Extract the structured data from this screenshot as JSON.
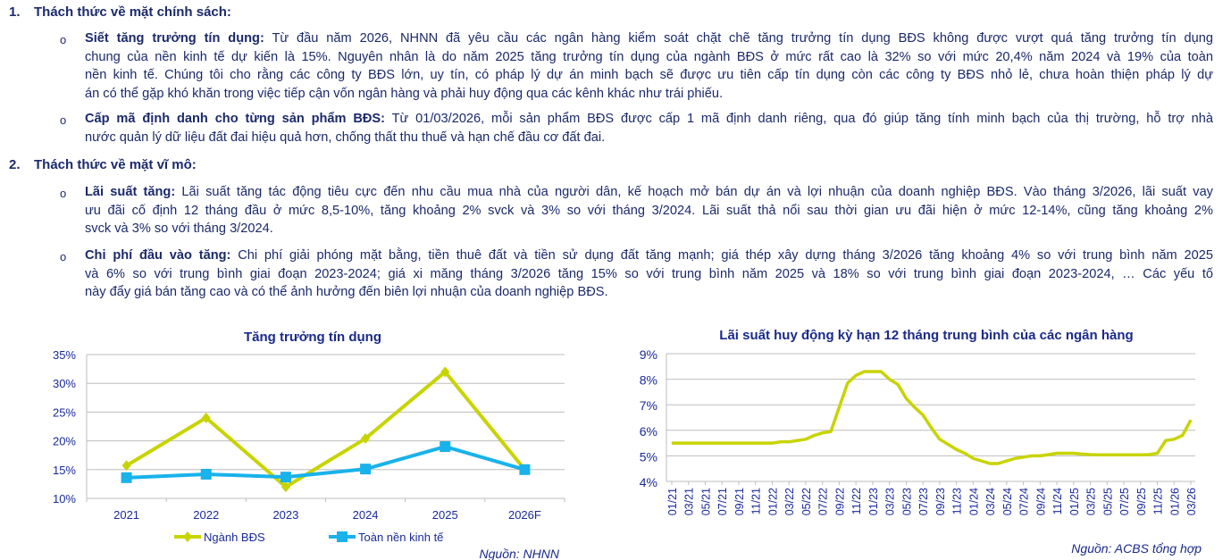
{
  "sections": [
    {
      "number": "1.",
      "title": "Thách thức về mặt chính sách:",
      "items": [
        {
          "label": "Siết tăng trưởng tín dụng:",
          "lines": [
            " Từ đầu năm 2026, NHNN đã yêu cầu các ngân hàng kiểm soát chặt chẽ tăng trưởng tín dụng BĐS không được vượt quá tăng trưởng tín dụng",
            "chung của nền kinh tế dự kiến là 15%. Nguyên nhân là do năm 2025 tăng trưởng tín dụng của ngành BĐS ở mức rất cao là 32% so với mức 20,4% năm 2024 và 19% của toàn",
            "nền kinh tế. Chúng tôi cho rằng các công ty BĐS lớn, uy tín, có pháp lý dự án minh bạch sẽ được ưu tiên cấp tín dụng còn các công ty BĐS nhỏ lẻ, chưa hoàn thiện pháp lý dự",
            "án có thể gặp khó khăn trong việc tiếp cận vốn ngân hàng và phải huy động qua các kênh khác như trái phiếu."
          ]
        },
        {
          "label": "Cấp mã định danh cho từng sản phẩm BĐS:",
          "lines": [
            " Từ 01/03/2026, mỗi sản phẩm BĐS được cấp 1 mã định danh riêng, qua đó giúp tăng tính minh bạch của thị trường, hỗ trợ nhà",
            "nước quản lý dữ liệu đất đai hiệu quả hơn, chống thất thu thuế và hạn chế đầu cơ đất đai."
          ]
        }
      ]
    },
    {
      "number": "2.",
      "title": "Thách thức về mặt vĩ mô:",
      "items": [
        {
          "label": "Lãi suất tăng:",
          "lines": [
            " Lãi suất tăng tác động tiêu cực đến nhu cầu mua nhà của người dân, kế hoạch mở bán dự án và lợi nhuận của doanh nghiệp BĐS. Vào tháng 3/2026, lãi suất vay",
            "ưu đãi cố định 12 tháng đầu ở mức 8,5-10%, tăng khoảng 2% svck và 3% so với tháng 3/2024. Lãi suất thả nổi sau thời gian ưu đãi hiện ở mức 12-14%, cũng tăng khoảng 2%",
            "svck và 3% so với tháng 3/2024."
          ]
        },
        {
          "label": "Chi phí đầu vào tăng:",
          "lines": [
            " Chi phí giải phóng mặt bằng, tiền thuê đất và tiền sử dụng đất tăng mạnh; giá thép xây dựng tháng 3/2026 tăng khoảng 4% so với trung bình năm 2025",
            "và 6% so với trung bình giai đoạn 2023-2024; giá xi măng tháng 3/2026 tăng 15% so với trung bình năm 2025 và 18% so với trung bình giai đoạn 2023-2024, … Các yếu tố",
            "này đẩy giá bán tăng cao và có thể ảnh hưởng đến biên lợi nhuận của doanh nghiệp BĐS."
          ]
        }
      ]
    }
  ],
  "bullet_symbol": "o",
  "chart_data": [
    {
      "type": "line",
      "title": "Tăng trưởng tín dụng",
      "categories": [
        "2021",
        "2022",
        "2023",
        "2024",
        "2025",
        "2026F"
      ],
      "series": [
        {
          "name": "Ngành BĐS",
          "color": "#c8d400",
          "marker": "diamond",
          "values": [
            15.7,
            24,
            12,
            20.4,
            32,
            15
          ]
        },
        {
          "name": "Toàn nền kinh tế",
          "color": "#19b2ea",
          "marker": "square",
          "values": [
            13.6,
            14.2,
            13.7,
            15.1,
            19,
            15
          ]
        }
      ],
      "ylim": [
        10,
        35
      ],
      "yticks": [
        "10%",
        "15%",
        "20%",
        "25%",
        "30%",
        "35%"
      ],
      "ytick_values": [
        10,
        15,
        20,
        25,
        30,
        35
      ],
      "grid": true,
      "legend": "bottom",
      "source": "Nguồn: NHNN"
    },
    {
      "type": "line",
      "title": "Lãi suất huy động kỳ hạn 12 tháng trung bình của các ngân hàng",
      "xlabels": [
        "01/21",
        "03/21",
        "05/21",
        "07/21",
        "09/21",
        "11/21",
        "01/22",
        "03/22",
        "05/22",
        "07/22",
        "09/22",
        "11/22",
        "01/23",
        "03/23",
        "05/23",
        "07/23",
        "09/23",
        "11/23",
        "01/24",
        "03/24",
        "05/24",
        "07/24",
        "09/24",
        "11/24",
        "01/25",
        "03/25",
        "05/25",
        "07/25",
        "09/25",
        "11/25",
        "01/26",
        "03/26"
      ],
      "series": [
        {
          "name": "Lãi suất huy động 12 tháng",
          "color": "#c8d400",
          "values": [
            5.5,
            5.5,
            5.5,
            5.5,
            5.5,
            5.5,
            5.5,
            5.5,
            5.5,
            5.5,
            5.5,
            5.5,
            5.5,
            5.55,
            5.55,
            5.6,
            5.65,
            5.8,
            5.9,
            5.95,
            6.9,
            7.85,
            8.15,
            8.3,
            8.3,
            8.3,
            8.0,
            7.8,
            7.25,
            6.9,
            6.6,
            6.1,
            5.65,
            5.45,
            5.25,
            5.1,
            4.9,
            4.8,
            4.7,
            4.7,
            4.8,
            4.9,
            4.95,
            5.0,
            5.0,
            5.05,
            5.1,
            5.1,
            5.1,
            5.07,
            5.05,
            5.04,
            5.04,
            5.04,
            5.04,
            5.04,
            5.04,
            5.05,
            5.1,
            5.6,
            5.65,
            5.8,
            6.4
          ]
        }
      ],
      "ylim": [
        4,
        9
      ],
      "yticks": [
        "4%",
        "5%",
        "6%",
        "7%",
        "8%",
        "9%"
      ],
      "ytick_values": [
        4,
        5,
        6,
        7,
        8,
        9
      ],
      "grid": true,
      "source": "Nguồn: ACBS tổng hợp"
    }
  ]
}
